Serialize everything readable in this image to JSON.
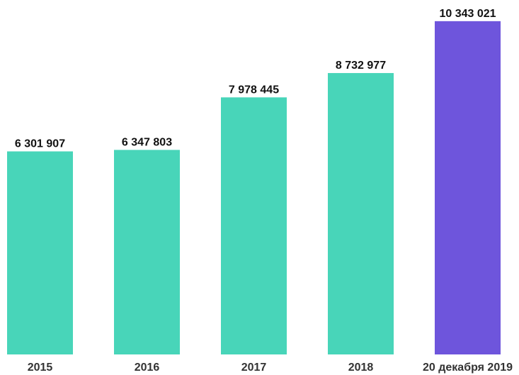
{
  "chart_data": {
    "type": "bar",
    "categories": [
      "2015",
      "2016",
      "2017",
      "2018",
      "20 декабря 2019"
    ],
    "values": [
      6301907,
      6347803,
      7978445,
      8732977,
      10343021
    ],
    "value_labels": [
      "6 301 907",
      "6 347 803",
      "7 978 445",
      "8 732 977",
      "10 343 021"
    ],
    "ylim": [
      0,
      11000000
    ],
    "grid": false,
    "legend": "none",
    "colors": {
      "default": "#48D5B9",
      "highlight": "#6E55DC",
      "highlight_index": 4
    }
  }
}
